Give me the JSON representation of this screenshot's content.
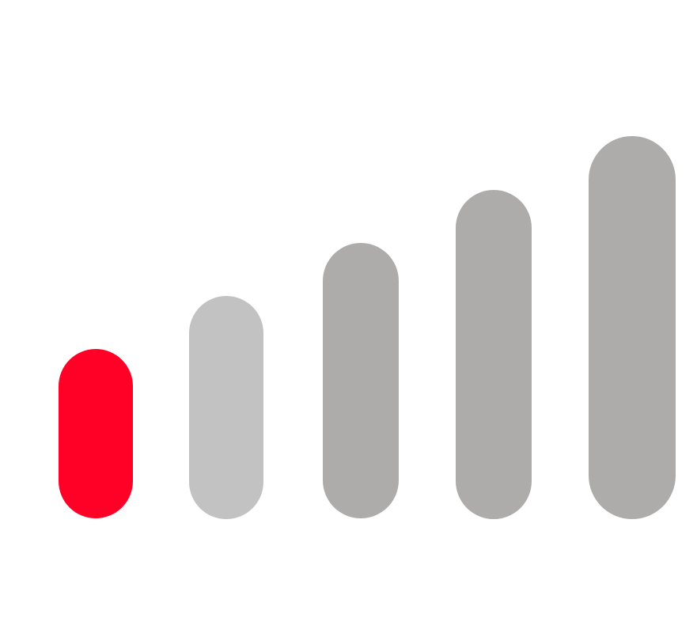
{
  "icon": "signal-strength-icon",
  "signal": {
    "level": 1,
    "max_level": 5
  },
  "colors": {
    "active": "#ff0026",
    "level_2": "#c2c2c2",
    "level_3": "#adacab",
    "level_4": "#adacab",
    "level_5": "#adacab"
  }
}
